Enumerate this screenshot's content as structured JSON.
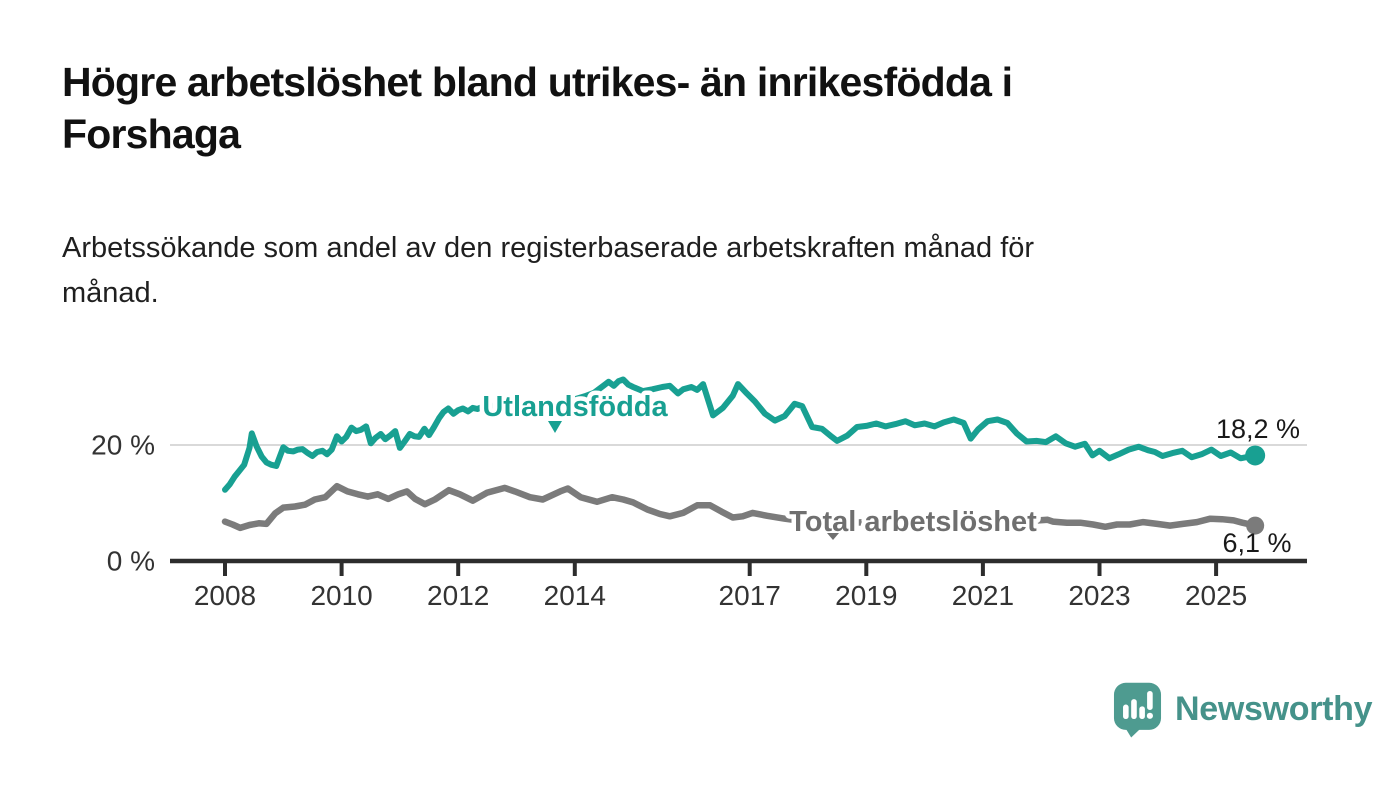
{
  "title": {
    "line1": "Högre arbetslöshet bland utrikes- än inrikesfödda i",
    "line2": "Forshaga"
  },
  "subtitle": {
    "line1": "Arbetssökande som andel av den registerbaserade arbetskraften månad för",
    "line2": "månad."
  },
  "branding": {
    "name": "Newsworthy",
    "icon": "newsworthy-speech-bubble-bar-chart-icon",
    "icon_color": "#4e9b90",
    "text_color": "#45928a"
  },
  "chart_data": {
    "type": "line",
    "title": "Högre arbetslöshet bland utrikes- än inrikesfödda i Forshaga",
    "subtitle": "Arbetssökande som andel av den registerbaserade arbetskraften månad för månad.",
    "unit": "%",
    "grid": "horizontal-only",
    "legend_position": "inline-labels-on-lines",
    "ylim": [
      0,
      33
    ],
    "x_ticks": [
      {
        "value": 2008,
        "label": "2008"
      },
      {
        "value": 2010,
        "label": "2010"
      },
      {
        "value": 2012,
        "label": "2012"
      },
      {
        "value": 2014,
        "label": "2014"
      },
      {
        "value": 2017,
        "label": "2017"
      },
      {
        "value": 2019,
        "label": "2019"
      },
      {
        "value": 2021,
        "label": "2021"
      },
      {
        "value": 2023,
        "label": "2023"
      },
      {
        "value": 2025,
        "label": "2025"
      }
    ],
    "y_ticks": [
      {
        "value": 0,
        "label": "0 %"
      },
      {
        "value": 20,
        "label": "20 %"
      }
    ],
    "series": [
      {
        "name": "Utlandsfödda",
        "color": "#18a092",
        "end_label": "18,2 %",
        "end_value": 18.2,
        "label_pointer": "triangle-down",
        "points": [
          [
            2008.0,
            12.3
          ],
          [
            2008.08,
            13.2
          ],
          [
            2008.17,
            14.6
          ],
          [
            2008.25,
            15.6
          ],
          [
            2008.33,
            16.6
          ],
          [
            2008.42,
            19.5
          ],
          [
            2008.46,
            22.0
          ],
          [
            2008.54,
            19.8
          ],
          [
            2008.63,
            18.0
          ],
          [
            2008.71,
            17.0
          ],
          [
            2008.79,
            16.6
          ],
          [
            2008.88,
            16.4
          ],
          [
            2009.0,
            19.6
          ],
          [
            2009.08,
            19.0
          ],
          [
            2009.17,
            18.9
          ],
          [
            2009.25,
            19.2
          ],
          [
            2009.33,
            19.3
          ],
          [
            2009.42,
            18.6
          ],
          [
            2009.5,
            18.1
          ],
          [
            2009.58,
            18.8
          ],
          [
            2009.67,
            19.0
          ],
          [
            2009.75,
            18.4
          ],
          [
            2009.83,
            19.2
          ],
          [
            2009.92,
            21.5
          ],
          [
            2010.0,
            20.6
          ],
          [
            2010.08,
            21.4
          ],
          [
            2010.17,
            23.0
          ],
          [
            2010.25,
            22.4
          ],
          [
            2010.33,
            22.6
          ],
          [
            2010.42,
            23.2
          ],
          [
            2010.5,
            20.3
          ],
          [
            2010.58,
            21.2
          ],
          [
            2010.67,
            21.9
          ],
          [
            2010.75,
            21.0
          ],
          [
            2010.83,
            21.6
          ],
          [
            2010.92,
            22.4
          ],
          [
            2011.0,
            19.5
          ],
          [
            2011.08,
            20.6
          ],
          [
            2011.17,
            21.9
          ],
          [
            2011.25,
            21.5
          ],
          [
            2011.33,
            21.4
          ],
          [
            2011.42,
            22.8
          ],
          [
            2011.5,
            21.7
          ],
          [
            2011.58,
            23.0
          ],
          [
            2011.67,
            24.6
          ],
          [
            2011.75,
            25.7
          ],
          [
            2011.83,
            26.3
          ],
          [
            2011.92,
            25.4
          ],
          [
            2012.0,
            26.0
          ],
          [
            2012.08,
            26.3
          ],
          [
            2012.17,
            25.8
          ],
          [
            2012.25,
            26.4
          ],
          [
            2012.33,
            26.2
          ],
          [
            2012.42,
            26.6
          ],
          [
            2012.5,
            26.3
          ],
          [
            2012.58,
            26.8
          ],
          [
            2012.67,
            26.4
          ],
          [
            2012.75,
            26.9
          ],
          [
            2012.83,
            26.6
          ],
          [
            2012.92,
            27.0
          ],
          [
            2013.0,
            26.7
          ],
          [
            2013.17,
            27.2
          ],
          [
            2013.33,
            26.8
          ],
          [
            2013.5,
            27.4
          ],
          [
            2013.67,
            27.0
          ],
          [
            2013.83,
            27.6
          ],
          [
            2014.0,
            27.9
          ],
          [
            2014.17,
            28.4
          ],
          [
            2014.33,
            29.0
          ],
          [
            2014.5,
            30.3
          ],
          [
            2014.58,
            30.9
          ],
          [
            2014.67,
            30.2
          ],
          [
            2014.75,
            31.0
          ],
          [
            2014.83,
            31.3
          ],
          [
            2014.92,
            30.4
          ],
          [
            2015.0,
            30.0
          ],
          [
            2015.17,
            29.3
          ],
          [
            2015.33,
            29.6
          ],
          [
            2015.5,
            30.0
          ],
          [
            2015.63,
            30.2
          ],
          [
            2015.77,
            28.9
          ],
          [
            2015.86,
            29.6
          ],
          [
            2016.0,
            30.0
          ],
          [
            2016.1,
            29.5
          ],
          [
            2016.2,
            30.5
          ],
          [
            2016.37,
            25.1
          ],
          [
            2016.54,
            26.4
          ],
          [
            2016.71,
            28.5
          ],
          [
            2016.8,
            30.5
          ],
          [
            2016.95,
            28.9
          ],
          [
            2017.09,
            27.5
          ],
          [
            2017.26,
            25.4
          ],
          [
            2017.43,
            24.2
          ],
          [
            2017.6,
            25.0
          ],
          [
            2017.77,
            27.1
          ],
          [
            2017.9,
            26.7
          ],
          [
            2018.07,
            23.1
          ],
          [
            2018.24,
            22.8
          ],
          [
            2018.41,
            21.4
          ],
          [
            2018.5,
            20.7
          ],
          [
            2018.67,
            21.6
          ],
          [
            2018.84,
            23.1
          ],
          [
            2019.0,
            23.3
          ],
          [
            2019.17,
            23.7
          ],
          [
            2019.33,
            23.2
          ],
          [
            2019.5,
            23.6
          ],
          [
            2019.67,
            24.1
          ],
          [
            2019.83,
            23.4
          ],
          [
            2020.0,
            23.7
          ],
          [
            2020.17,
            23.2
          ],
          [
            2020.33,
            23.9
          ],
          [
            2020.5,
            24.4
          ],
          [
            2020.67,
            23.8
          ],
          [
            2020.79,
            21.1
          ],
          [
            2020.92,
            22.7
          ],
          [
            2021.08,
            24.1
          ],
          [
            2021.25,
            24.4
          ],
          [
            2021.42,
            23.8
          ],
          [
            2021.58,
            22.0
          ],
          [
            2021.75,
            20.6
          ],
          [
            2021.92,
            20.7
          ],
          [
            2022.08,
            20.5
          ],
          [
            2022.25,
            21.5
          ],
          [
            2022.42,
            20.3
          ],
          [
            2022.58,
            19.7
          ],
          [
            2022.75,
            20.2
          ],
          [
            2022.88,
            18.2
          ],
          [
            2023.0,
            19.0
          ],
          [
            2023.17,
            17.7
          ],
          [
            2023.33,
            18.4
          ],
          [
            2023.5,
            19.2
          ],
          [
            2023.67,
            19.7
          ],
          [
            2023.83,
            19.1
          ],
          [
            2023.95,
            18.8
          ],
          [
            2024.08,
            18.1
          ],
          [
            2024.25,
            18.6
          ],
          [
            2024.42,
            19.0
          ],
          [
            2024.58,
            17.9
          ],
          [
            2024.75,
            18.4
          ],
          [
            2024.92,
            19.2
          ],
          [
            2025.08,
            18.1
          ],
          [
            2025.25,
            18.7
          ],
          [
            2025.42,
            17.7
          ],
          [
            2025.67,
            18.2
          ]
        ]
      },
      {
        "name": "Total arbetslöshet",
        "color": "#7b7b7b",
        "label_color": "#6f6f6f",
        "end_label": "6,1 %",
        "end_value": 6.1,
        "label_pointer": "triangle-down",
        "points": [
          [
            2008.0,
            6.8
          ],
          [
            2008.13,
            6.3
          ],
          [
            2008.26,
            5.7
          ],
          [
            2008.42,
            6.2
          ],
          [
            2008.58,
            6.5
          ],
          [
            2008.71,
            6.4
          ],
          [
            2008.86,
            8.2
          ],
          [
            2009.0,
            9.2
          ],
          [
            2009.2,
            9.4
          ],
          [
            2009.37,
            9.7
          ],
          [
            2009.54,
            10.6
          ],
          [
            2009.72,
            11.0
          ],
          [
            2009.92,
            12.9
          ],
          [
            2010.1,
            12.0
          ],
          [
            2010.28,
            11.5
          ],
          [
            2010.45,
            11.1
          ],
          [
            2010.62,
            11.5
          ],
          [
            2010.8,
            10.7
          ],
          [
            2010.97,
            11.5
          ],
          [
            2011.12,
            12.0
          ],
          [
            2011.26,
            10.7
          ],
          [
            2011.43,
            9.8
          ],
          [
            2011.6,
            10.6
          ],
          [
            2011.84,
            12.2
          ],
          [
            2012.03,
            11.5
          ],
          [
            2012.25,
            10.4
          ],
          [
            2012.5,
            11.8
          ],
          [
            2012.8,
            12.6
          ],
          [
            2012.97,
            12.0
          ],
          [
            2013.23,
            11.0
          ],
          [
            2013.45,
            10.6
          ],
          [
            2013.75,
            12.0
          ],
          [
            2013.88,
            12.5
          ],
          [
            2014.1,
            11.0
          ],
          [
            2014.38,
            10.2
          ],
          [
            2014.64,
            11.0
          ],
          [
            2014.83,
            10.6
          ],
          [
            2015.0,
            10.1
          ],
          [
            2015.24,
            8.9
          ],
          [
            2015.46,
            8.1
          ],
          [
            2015.63,
            7.7
          ],
          [
            2015.86,
            8.3
          ],
          [
            2016.1,
            9.6
          ],
          [
            2016.32,
            9.6
          ],
          [
            2016.52,
            8.5
          ],
          [
            2016.71,
            7.5
          ],
          [
            2016.88,
            7.7
          ],
          [
            2017.05,
            8.3
          ],
          [
            2017.3,
            7.8
          ],
          [
            2017.6,
            7.3
          ],
          [
            2017.9,
            6.9
          ],
          [
            2018.2,
            6.7
          ],
          [
            2018.5,
            6.5
          ],
          [
            2018.8,
            6.6
          ],
          [
            2019.1,
            6.8
          ],
          [
            2019.4,
            6.6
          ],
          [
            2019.7,
            6.5
          ],
          [
            2020.0,
            7.2
          ],
          [
            2020.3,
            7.8
          ],
          [
            2020.6,
            7.6
          ],
          [
            2020.9,
            7.4
          ],
          [
            2021.2,
            7.3
          ],
          [
            2021.5,
            7.1
          ],
          [
            2021.8,
            6.9
          ],
          [
            2022.11,
            7.1
          ],
          [
            2022.2,
            6.8
          ],
          [
            2022.44,
            6.6
          ],
          [
            2022.67,
            6.6
          ],
          [
            2022.89,
            6.3
          ],
          [
            2023.1,
            5.9
          ],
          [
            2023.3,
            6.3
          ],
          [
            2023.52,
            6.3
          ],
          [
            2023.75,
            6.7
          ],
          [
            2023.99,
            6.4
          ],
          [
            2024.21,
            6.1
          ],
          [
            2024.43,
            6.4
          ],
          [
            2024.67,
            6.7
          ],
          [
            2024.9,
            7.3
          ],
          [
            2025.1,
            7.2
          ],
          [
            2025.3,
            7.0
          ],
          [
            2025.45,
            6.6
          ],
          [
            2025.67,
            6.1
          ]
        ]
      }
    ],
    "colors": {
      "axis": "#2d2d2d",
      "gridline": "#d9d9d9",
      "tick_text": "#333333",
      "value_label_text": "#191919"
    }
  }
}
